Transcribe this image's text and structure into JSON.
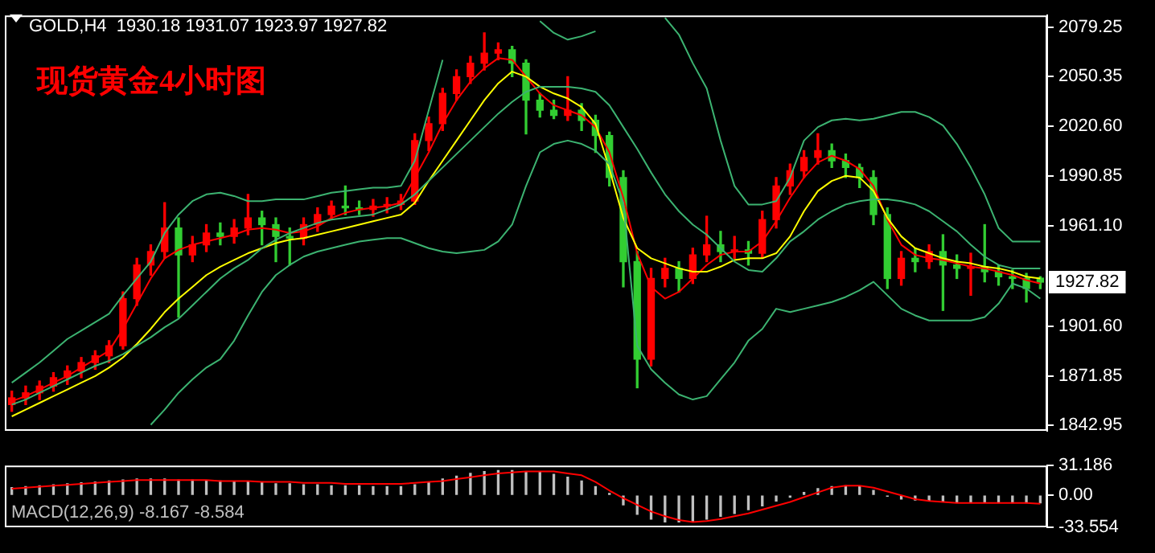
{
  "chart_data": [
    {
      "type": "candlestick",
      "title": "GOLD,H4  1930.18 1931.07 1923.97 1927.82",
      "annotations": [
        "现货黄金4小时图",
        "1927.82"
      ],
      "categories": [
        null,
        null,
        null,
        null,
        null,
        null,
        null,
        null,
        null,
        null,
        null,
        null,
        null,
        null,
        null,
        null,
        null,
        null,
        null,
        null,
        null,
        null,
        null,
        null,
        null,
        null,
        null,
        null,
        null,
        null,
        null,
        null,
        null,
        null,
        null,
        null,
        null,
        null,
        null,
        null,
        null,
        null,
        null,
        null,
        null,
        null,
        null,
        null,
        null,
        null,
        null,
        null,
        null,
        null,
        null,
        null,
        null,
        null,
        null,
        null,
        null,
        null,
        null,
        null,
        null,
        null,
        null,
        null,
        null,
        null,
        null,
        null,
        null,
        null,
        null
      ],
      "ohlc": [
        [
          1855,
          1863,
          1851,
          1859
        ],
        [
          1859,
          1866,
          1855,
          1862
        ],
        [
          1862,
          1869,
          1858,
          1866
        ],
        [
          1866,
          1874,
          1863,
          1871
        ],
        [
          1871,
          1878,
          1867,
          1875
        ],
        [
          1875,
          1883,
          1871,
          1880
        ],
        [
          1880,
          1887,
          1876,
          1884
        ],
        [
          1884,
          1893,
          1880,
          1890
        ],
        [
          1890,
          1922,
          1888,
          1918
        ],
        [
          1918,
          1942,
          1914,
          1938
        ],
        [
          1938,
          1950,
          1932,
          1946
        ],
        [
          1946,
          1975,
          1942,
          1960
        ],
        [
          1960,
          1966,
          1907,
          1944
        ],
        [
          1944,
          1955,
          1940,
          1950
        ],
        [
          1950,
          1962,
          1946,
          1957
        ],
        [
          1957,
          1963,
          1950,
          1955
        ],
        [
          1955,
          1965,
          1951,
          1960
        ],
        [
          1960,
          1980,
          1956,
          1966
        ],
        [
          1966,
          1970,
          1950,
          1962
        ],
        [
          1962,
          1966,
          1940,
          1955
        ],
        [
          1955,
          1960,
          1938,
          1954
        ],
        [
          1954,
          1966,
          1950,
          1962
        ],
        [
          1962,
          1972,
          1958,
          1968
        ],
        [
          1968,
          1976,
          1965,
          1973
        ],
        [
          1973,
          1985,
          1968,
          1972
        ],
        [
          1972,
          1976,
          1968,
          1971
        ],
        [
          1971,
          1977,
          1967,
          1973
        ],
        [
          1973,
          1978,
          1969,
          1974
        ],
        [
          1974,
          1980,
          1971,
          1976
        ],
        [
          1976,
          2016,
          1974,
          2012
        ],
        [
          2012,
          2026,
          2006,
          2022
        ],
        [
          2022,
          2043,
          2018,
          2040
        ],
        [
          2040,
          2054,
          2036,
          2050
        ],
        [
          2050,
          2062,
          2046,
          2058
        ],
        [
          2058,
          2076,
          2054,
          2064
        ],
        [
          2064,
          2070,
          2060,
          2066
        ],
        [
          2066,
          2068,
          2050,
          2058
        ],
        [
          2058,
          2060,
          2016,
          2036
        ],
        [
          2036,
          2040,
          2026,
          2030
        ],
        [
          2030,
          2036,
          2025,
          2027
        ],
        [
          2027,
          2050,
          2024,
          2030
        ],
        [
          2030,
          2034,
          2018,
          2024
        ],
        [
          2024,
          2027,
          2005,
          2015
        ],
        [
          2015,
          2017,
          1985,
          1990
        ],
        [
          1990,
          1994,
          1925,
          1940
        ],
        [
          1940,
          1946,
          1865,
          1882
        ],
        [
          1882,
          1936,
          1878,
          1930
        ],
        [
          1930,
          1942,
          1925,
          1936
        ],
        [
          1936,
          1940,
          1922,
          1930
        ],
        [
          1930,
          1948,
          1927,
          1944
        ],
        [
          1944,
          1967,
          1940,
          1950
        ],
        [
          1950,
          1958,
          1940,
          1946
        ],
        [
          1946,
          1955,
          1942,
          1947
        ],
        [
          1947,
          1952,
          1938,
          1945
        ],
        [
          1945,
          1970,
          1942,
          1965
        ],
        [
          1965,
          1990,
          1960,
          1985
        ],
        [
          1985,
          1998,
          1980,
          1994
        ],
        [
          1994,
          2006,
          1990,
          2002
        ],
        [
          2002,
          2016,
          1998,
          2006
        ],
        [
          2006,
          2010,
          1996,
          2000
        ],
        [
          2000,
          2004,
          1990,
          1996
        ],
        [
          1996,
          1998,
          1984,
          1990
        ],
        [
          1990,
          1994,
          1962,
          1968
        ],
        [
          1968,
          1972,
          1924,
          1930
        ],
        [
          1930,
          1946,
          1926,
          1942
        ],
        [
          1942,
          1948,
          1934,
          1940
        ],
        [
          1940,
          1950,
          1936,
          1946
        ],
        [
          1946,
          1956,
          1911,
          1938
        ],
        [
          1938,
          1944,
          1930,
          1936
        ],
        [
          1936,
          1945,
          1920,
          1937
        ],
        [
          1937,
          1962,
          1928,
          1934
        ],
        [
          1934,
          1938,
          1926,
          1931
        ],
        [
          1931,
          1935,
          1924,
          1930
        ],
        [
          1930,
          1933,
          1916,
          1924
        ],
        [
          1930.18,
          1931.07,
          1923.97,
          1927.82
        ]
      ],
      "colors": [
        "#ff0000",
        "#ff0000",
        "#ff0000",
        "#ff0000",
        "#ff0000",
        "#ff0000",
        "#ff0000",
        "#ff0000",
        "#ff0000",
        "#ff0000",
        "#ff0000",
        "#ff0000",
        "#32cd32",
        "#ff0000",
        "#ff0000",
        "#32cd32",
        "#ff0000",
        "#ff0000",
        "#32cd32",
        "#32cd32",
        "#32cd32",
        "#ff0000",
        "#ff0000",
        "#ff0000",
        "#32cd32",
        "#32cd32",
        "#ff0000",
        "#ff0000",
        "#ff0000",
        "#ff0000",
        "#ff0000",
        "#ff0000",
        "#ff0000",
        "#ff0000",
        "#ff0000",
        "#ff0000",
        "#32cd32",
        "#32cd32",
        "#32cd32",
        "#32cd32",
        "#ff0000",
        "#32cd32",
        "#32cd32",
        "#32cd32",
        "#32cd32",
        "#32cd32",
        "#ff0000",
        "#ff0000",
        "#32cd32",
        "#ff0000",
        "#ff0000",
        "#32cd32",
        "#ff0000",
        "#32cd32",
        "#ff0000",
        "#ff0000",
        "#ff0000",
        "#ff0000",
        "#ff0000",
        "#32cd32",
        "#32cd32",
        "#32cd32",
        "#32cd32",
        "#32cd32",
        "#ff0000",
        "#32cd32",
        "#ff0000",
        "#32cd32",
        "#32cd32",
        "#ff0000",
        "#32cd32",
        "#32cd32",
        "#32cd32",
        "#32cd32",
        "#32cd32"
      ],
      "series": [
        {
          "type": "line",
          "color": "#3cb371",
          "values": [
            1868,
            1874,
            1880,
            1887,
            1894,
            1899,
            1904,
            1909,
            1920,
            1930,
            1940,
            1957,
            1968,
            1976,
            1980,
            1981,
            1979,
            1976,
            1976,
            1977,
            1977,
            1977,
            1979,
            1981,
            1982,
            1983,
            1984,
            1984,
            1985,
            2000,
            2030,
            2060,
            null,
            null,
            null,
            null,
            null,
            null,
            2083,
            2076,
            2072,
            2074,
            2077,
            null,
            null,
            null,
            null,
            2085,
            2075,
            2058,
            2043,
            2012,
            1985,
            1974,
            1974,
            1976,
            1990,
            2012,
            2020,
            2024,
            2025,
            2024,
            2025,
            2027,
            2029,
            2029,
            2026,
            2021,
            2010,
            1996,
            1980,
            1960,
            1952,
            1952,
            1952
          ]
        },
        {
          "type": "line",
          "color": "#3cb371",
          "values": [
            1855,
            1858,
            1862,
            1866,
            1870,
            1874,
            1878,
            1881,
            1885,
            1890,
            1895,
            1901,
            1906,
            1914,
            1922,
            1930,
            1936,
            1941,
            1948,
            1953,
            1957,
            1960,
            1963,
            1965,
            1966,
            1967,
            1968,
            1971,
            1974,
            1980,
            1988,
            1996,
            2004,
            2012,
            2020,
            2028,
            2035,
            2041,
            2044,
            2044,
            2044,
            2043,
            2041,
            2033,
            2020,
            2007,
            1993,
            1980,
            1970,
            1962,
            1956,
            1948,
            1940,
            1935,
            1934,
            1942,
            1952,
            1958,
            1965,
            1970,
            1974,
            1976,
            1977,
            1977,
            1976,
            1974,
            1970,
            1964,
            1958,
            1950,
            1943,
            1938,
            1936,
            1936,
            1936
          ]
        },
        {
          "type": "line",
          "color": "#3cb371",
          "values": [
            null,
            null,
            null,
            null,
            null,
            null,
            null,
            null,
            null,
            null,
            1843,
            1852,
            1862,
            1870,
            1877,
            1882,
            1893,
            1908,
            1922,
            1932,
            1938,
            1943,
            1946,
            1948,
            1950,
            1952,
            1953,
            1954,
            1954,
            1951,
            1948,
            1946,
            1945,
            1946,
            1947,
            1952,
            1962,
            1985,
            2005,
            2010,
            2012,
            2010,
            2006,
            1998,
            1975,
            1890,
            1876,
            1868,
            1861,
            1858,
            1860,
            1870,
            1880,
            1893,
            1900,
            1912,
            1910,
            1912,
            1914,
            1916,
            1919,
            1923,
            1928,
            1920,
            1912,
            1908,
            1905,
            1905,
            1905,
            1905,
            1907,
            1915,
            1927,
            1924,
            1918
          ]
        },
        {
          "type": "line",
          "color": "#ffff00",
          "values": [
            1848,
            1852,
            1856,
            1860,
            1864,
            1868,
            1872,
            1877,
            1883,
            1891,
            1900,
            1910,
            1918,
            1925,
            1932,
            1937,
            1941,
            1945,
            1948,
            1951,
            1953,
            1954,
            1956,
            1958,
            1960,
            1962,
            1964,
            1966,
            1968,
            1975,
            1988,
            2000,
            2012,
            2024,
            2036,
            2046,
            2053,
            2050,
            2044,
            2040,
            2037,
            2032,
            2022,
            1995,
            1966,
            1948,
            1942,
            1939,
            1936,
            1934,
            1934,
            1937,
            1941,
            1942,
            1942,
            1945,
            1955,
            1970,
            1982,
            1988,
            1991,
            1990,
            1982,
            1966,
            1955,
            1948,
            1945,
            1942,
            1940,
            1939,
            1937,
            1936,
            1934,
            1931,
            1930
          ]
        },
        {
          "type": "line",
          "color": "#ff0000",
          "values": [
            1857,
            1860,
            1864,
            1868,
            1872,
            1877,
            1882,
            1887,
            1900,
            1915,
            1930,
            1942,
            1947,
            1950,
            1952,
            1954,
            1956,
            1959,
            1960,
            1959,
            1957,
            1958,
            1961,
            1966,
            1969,
            1971,
            1972,
            1973,
            1975,
            1990,
            2005,
            2022,
            2036,
            2047,
            2055,
            2061,
            2060,
            2050,
            2040,
            2033,
            2030,
            2027,
            2020,
            2005,
            1978,
            1945,
            1925,
            1918,
            1922,
            1930,
            1938,
            1944,
            1946,
            1946,
            1952,
            1964,
            1978,
            1990,
            1999,
            2003,
            2000,
            1995,
            1985,
            1965,
            1950,
            1944,
            1942,
            1941,
            1939,
            1937,
            1936,
            1934,
            1932,
            1929,
            1927
          ]
        }
      ],
      "ylim": [
        1839.4,
        2086.4
      ],
      "yticks": [
        {
          "value": 2079.25,
          "label": "2079.25"
        },
        {
          "value": 2050.35,
          "label": "2050.35"
        },
        {
          "value": 2020.6,
          "label": "2020.60"
        },
        {
          "value": 1990.85,
          "label": "1990.85"
        },
        {
          "value": 1961.1,
          "label": "1961.10"
        },
        {
          "value": 1901.6,
          "label": "1901.60"
        },
        {
          "value": 1871.85,
          "label": "1871.85"
        },
        {
          "value": 1842.95,
          "label": "1842.95"
        }
      ],
      "tick_labels": "y"
    },
    {
      "type": "bar",
      "title": "MACD(12,26,9) -8.167 -8.584",
      "categories": [
        null,
        null,
        null,
        null,
        null,
        null,
        null,
        null,
        null,
        null,
        null,
        null,
        null,
        null,
        null,
        null,
        null,
        null,
        null,
        null,
        null,
        null,
        null,
        null,
        null,
        null,
        null,
        null,
        null,
        null,
        null,
        null,
        null,
        null,
        null,
        null,
        null,
        null,
        null,
        null,
        null,
        null,
        null,
        null,
        null,
        null,
        null,
        null,
        null,
        null,
        null,
        null,
        null,
        null,
        null,
        null,
        null,
        null,
        null,
        null,
        null,
        null,
        null,
        null,
        null,
        null,
        null,
        null,
        null,
        null,
        null,
        null,
        null,
        null,
        null
      ],
      "series": [
        {
          "type": "bar",
          "color": "#c0c0c0",
          "values": [
            8,
            9,
            10,
            11,
            12,
            13,
            14,
            15,
            16,
            17,
            17,
            17,
            16,
            16,
            15,
            15,
            14,
            14,
            13,
            12,
            12,
            11,
            11,
            10,
            10,
            10,
            9,
            9,
            9,
            11,
            14,
            17,
            20,
            23,
            25,
            26,
            26,
            25,
            24,
            22,
            19,
            15,
            9,
            2,
            -10,
            -20,
            -25,
            -28,
            -28,
            -27,
            -25,
            -22,
            -19,
            -15,
            -11,
            -6,
            -2,
            3,
            7,
            9,
            10,
            9,
            5,
            -1,
            -4,
            -5,
            -6,
            -6,
            -7,
            -7,
            -7,
            -8,
            -8,
            -8,
            -8
          ]
        },
        {
          "type": "line",
          "color": "#ff0000",
          "values": [
            7,
            8,
            9,
            10,
            11,
            12,
            13,
            14,
            15,
            16,
            16,
            16,
            16,
            16,
            16,
            15,
            15,
            15,
            14,
            14,
            14,
            13,
            13,
            13,
            12,
            12,
            12,
            12,
            12,
            13,
            14,
            15,
            17,
            19,
            21,
            23,
            24,
            25,
            25,
            25,
            23,
            21,
            14,
            5,
            -3,
            -10,
            -17,
            -22,
            -26,
            -28,
            -27,
            -25,
            -22,
            -19,
            -15,
            -11,
            -7,
            -2,
            3,
            8,
            10,
            10,
            8,
            4,
            0,
            -4,
            -6,
            -7,
            -8,
            -8,
            -8,
            -8,
            -8,
            -8,
            -9
          ]
        }
      ],
      "ylim": [
        -33.554,
        31.186
      ],
      "yticks": [
        {
          "value": 31.186,
          "label": "31.186"
        },
        {
          "value": 0,
          "label": "0.00"
        },
        {
          "value": -33.554,
          "label": "-33.554"
        }
      ],
      "tick_labels": "y"
    }
  ]
}
